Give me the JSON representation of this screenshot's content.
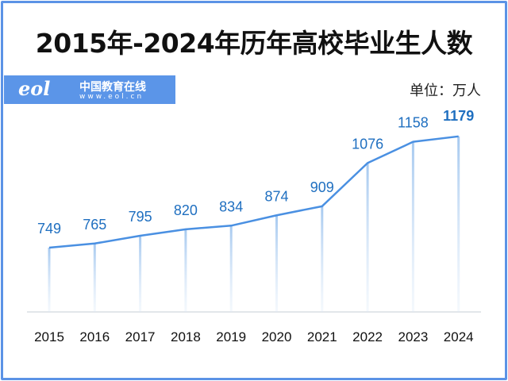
{
  "header": {
    "title": "2015年-2024年历年高校毕业生人数"
  },
  "logo": {
    "mark": "eol",
    "name": "中国教育在线",
    "url": "www.eol.cn"
  },
  "chart_data": {
    "type": "line",
    "title": "2015年-2024年历年高校毕业生人数",
    "unit": "单位：万人",
    "categories": [
      "2015",
      "2016",
      "2017",
      "2018",
      "2019",
      "2020",
      "2021",
      "2022",
      "2023",
      "2024"
    ],
    "values": [
      749,
      765,
      795,
      820,
      834,
      874,
      909,
      1076,
      1158,
      1179
    ],
    "highlight_last": true,
    "colors": {
      "line": "#4a90e2",
      "label": "#1f6fc0"
    },
    "grid": false,
    "legend": "none"
  }
}
